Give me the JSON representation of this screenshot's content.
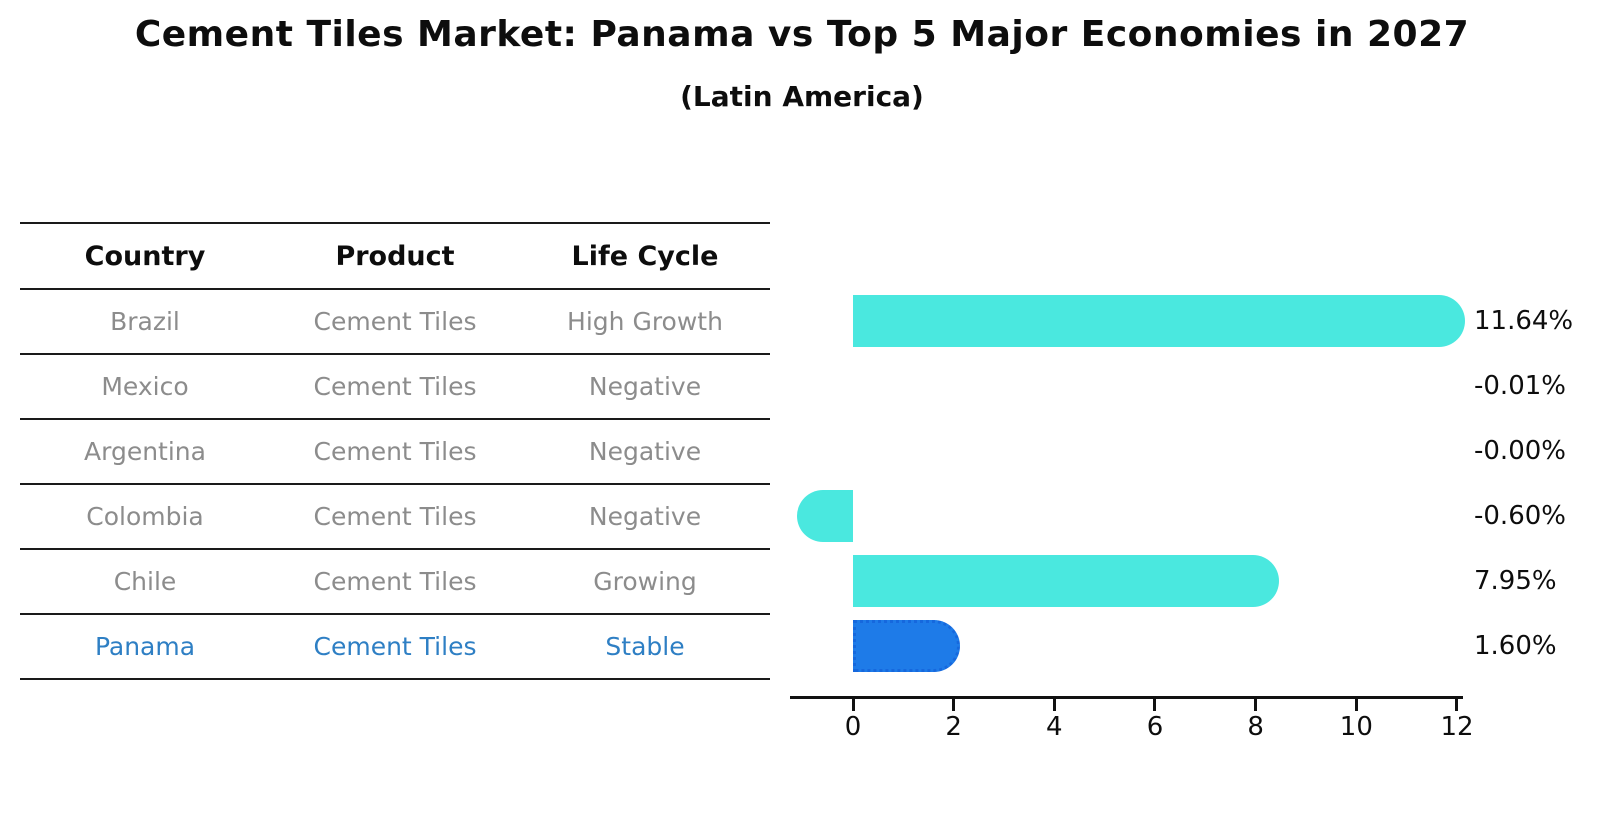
{
  "title": "Cement Tiles Market: Panama vs Top 5 Major Economies in 2027",
  "subtitle": "(Latin America)",
  "table": {
    "columns": [
      "Country",
      "Product",
      "Life Cycle"
    ],
    "rows": [
      {
        "country": "Brazil",
        "product": "Cement Tiles",
        "life_cycle": "High Growth",
        "highlight": false
      },
      {
        "country": "Mexico",
        "product": "Cement Tiles",
        "life_cycle": "Negative",
        "highlight": false
      },
      {
        "country": "Argentina",
        "product": "Cement Tiles",
        "life_cycle": "Negative",
        "highlight": false
      },
      {
        "country": "Colombia",
        "product": "Cement Tiles",
        "life_cycle": "Negative",
        "highlight": false
      },
      {
        "country": "Chile",
        "product": "Cement Tiles",
        "life_cycle": "Growing",
        "highlight": false
      },
      {
        "country": "Panama",
        "product": "Cement Tiles",
        "life_cycle": "Stable",
        "highlight": true
      }
    ]
  },
  "chart_data": {
    "type": "bar",
    "orientation": "horizontal",
    "title": "Cement Tiles Market: Panama vs Top 5 Major Economies in 2027",
    "subtitle": "(Latin America)",
    "categories": [
      "Brazil",
      "Mexico",
      "Argentina",
      "Colombia",
      "Chile",
      "Panama"
    ],
    "values": [
      11.64,
      -0.01,
      -0.0,
      -0.6,
      7.95,
      1.6
    ],
    "value_labels": [
      "11.64%",
      "-0.01%",
      "-0.00%",
      "-0.60%",
      "7.95%",
      "1.60%"
    ],
    "xlabel": "",
    "ylabel": "",
    "xlim": [
      0,
      12
    ],
    "x_ticks": [
      0,
      2,
      4,
      6,
      8,
      10,
      12
    ],
    "grid": false,
    "legend": false,
    "highlight_index": 5,
    "highlight_style": "dotted-border"
  },
  "colors": {
    "bar_default": "#4ae8df",
    "bar_highlight": "#1e7be8",
    "bar_highlight_border": "#1668dd",
    "highlight_text": "#2e7fc4",
    "row_text": "#8c8c8c",
    "axis": "#111111",
    "text": "#0d0d0d"
  }
}
